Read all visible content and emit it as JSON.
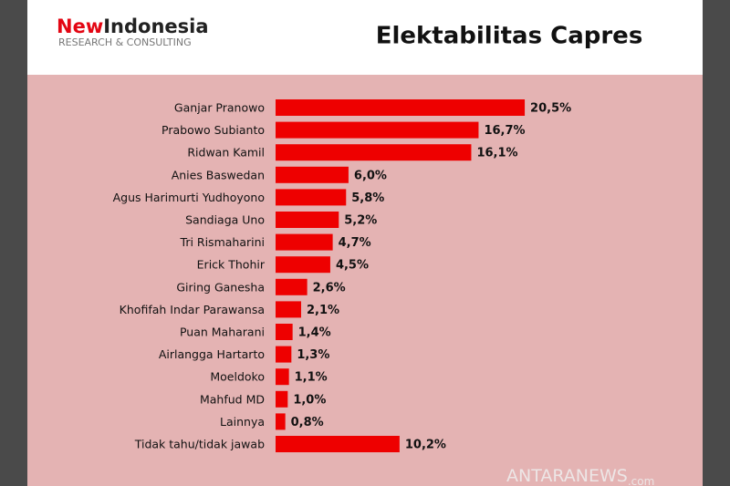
{
  "logo": {
    "brand_first": "New",
    "brand_second": "Indonesia",
    "tagline": "RESEARCH & CONSULTING"
  },
  "watermark": "ANTARANEWS",
  "watermark_suffix": ".com",
  "chart_data": {
    "type": "bar",
    "orientation": "horizontal",
    "title": "Elektabilitas Capres",
    "color": "#ee0000",
    "categories": [
      "Ganjar Pranowo",
      "Prabowo Subianto",
      "Ridwan Kamil",
      "Anies Baswedan",
      "Agus Harimurti Yudhoyono",
      "Sandiaga Uno",
      "Tri Rismaharini",
      "Erick Thohir",
      "Giring Ganesha",
      "Khofifah Indar Parawansa",
      "Puan Maharani",
      "Airlangga Hartarto",
      "Moeldoko",
      "Mahfud MD",
      "Lainnya",
      "Tidak tahu/tidak jawab"
    ],
    "values": [
      20.5,
      16.7,
      16.1,
      6.0,
      5.8,
      5.2,
      4.7,
      4.5,
      2.6,
      2.1,
      1.4,
      1.3,
      1.1,
      1.0,
      0.8,
      10.2
    ],
    "value_labels": [
      "20,5%",
      "16,7%",
      "16,1%",
      "6,0%",
      "5,8%",
      "5,2%",
      "4,7%",
      "4,5%",
      "2,6%",
      "2,1%",
      "1,4%",
      "1,3%",
      "1,1%",
      "1,0%",
      "0,8%",
      "10,2%"
    ]
  }
}
